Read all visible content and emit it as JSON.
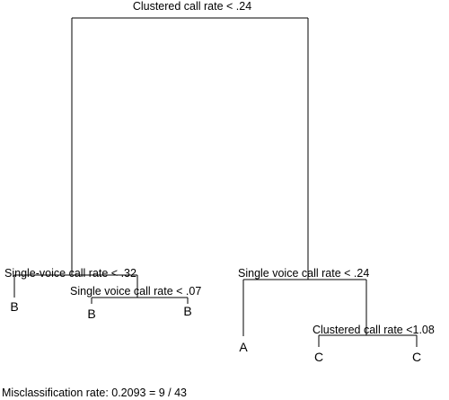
{
  "tree": {
    "root_split": "Clustered call rate < .24",
    "left_split": "Single-voice call rate < .32",
    "left_right_split": "Single voice call rate < .07",
    "right_split": "Single voice call rate < .24",
    "right_right_split": "Clustered call rate <1.08",
    "leaves": {
      "left_left": "B",
      "left_right_left": "B",
      "left_right_right": "B",
      "right_left": "A",
      "right_right_left": "C",
      "right_right_right": "C"
    }
  },
  "footer": {
    "misclassification": "Misclassification rate: 0.2093 = 9 / 43"
  }
}
